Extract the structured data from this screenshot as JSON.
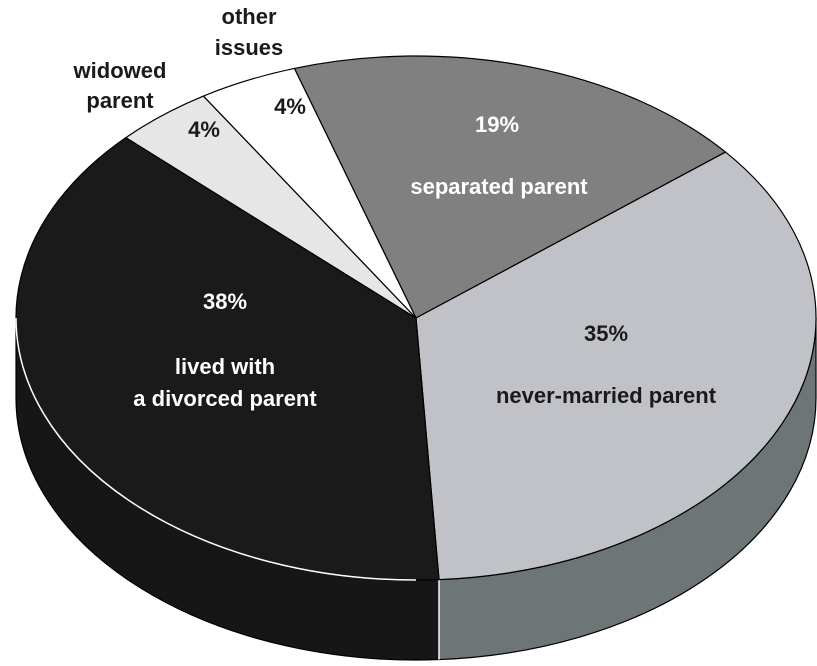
{
  "chart_data": {
    "type": "pie",
    "title": "",
    "slices": [
      {
        "label": "separated parent",
        "value": 19,
        "value_label": "19%",
        "color": "#808080",
        "side_color": "#555555",
        "text_color": "#ffffff"
      },
      {
        "label": "never-married parent",
        "value": 35,
        "value_label": "35%",
        "color": "#c0c2c7",
        "side_color": "#6e7577",
        "text_color": "#1a1a1a"
      },
      {
        "label": "lived with a divorced parent",
        "value": 38,
        "value_label": "38%",
        "color": "#1a1a1a",
        "side_color": "#161616",
        "text_color": "#ffffff"
      },
      {
        "label": "widowed parent",
        "value": 4,
        "value_label": "4%",
        "color": "#e6e6e6",
        "side_color": "#9a9a9a",
        "text_color": "#1a1a1a"
      },
      {
        "label": "other issues",
        "value": 4,
        "value_label": "4%",
        "color": "#ffffff",
        "side_color": "#cccccc",
        "text_color": "#1a1a1a"
      }
    ]
  }
}
